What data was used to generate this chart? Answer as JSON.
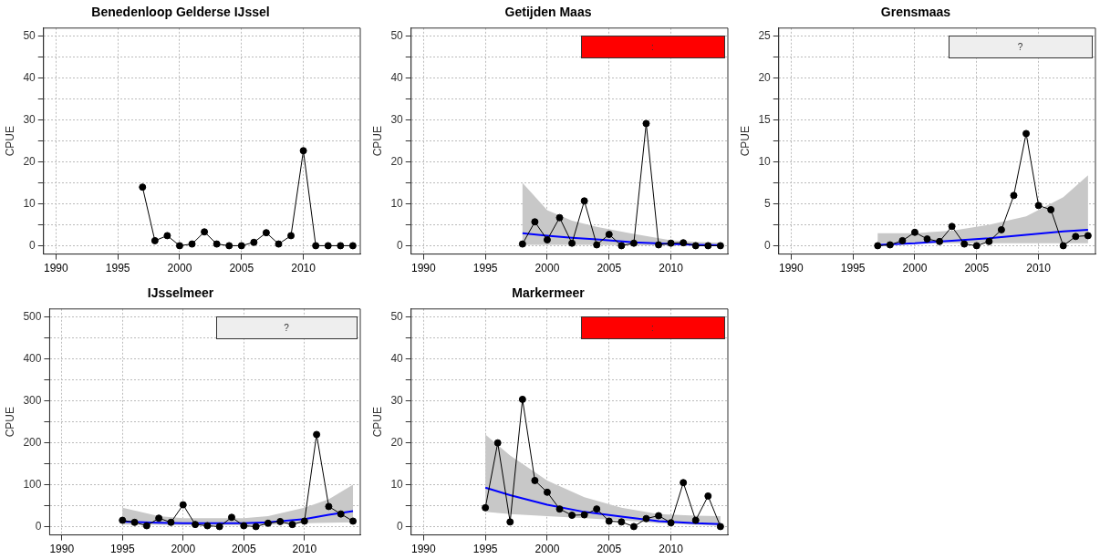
{
  "chart_data": [
    {
      "type": "line",
      "title": "Benedenloop Gelderse IJssel",
      "ylabel": "CPUE",
      "xlim": [
        1989,
        2014.6
      ],
      "ylim": [
        -2,
        52
      ],
      "xticks": [
        1990,
        1995,
        2000,
        2005,
        2010
      ],
      "yticks": [
        0,
        {
          "value": 5,
          "label": null
        },
        10,
        {
          "value": 15,
          "label": null
        },
        20,
        {
          "value": 25,
          "label": null
        },
        30,
        {
          "value": 35,
          "label": null
        },
        40,
        {
          "value": 45,
          "label": null
        },
        50
      ],
      "grid": true,
      "legend": false,
      "marker": "circle",
      "series": [
        {
          "color": "#000000",
          "x": [
            1997,
            1998,
            1999,
            2000,
            2001,
            2002,
            2003,
            2004,
            2005,
            2006,
            2007,
            2008,
            2009,
            2010,
            2011,
            2012,
            2013,
            2014
          ],
          "values": [
            14,
            1.2,
            2.4,
            0,
            0.4,
            3.3,
            0.4,
            0,
            0,
            0.8,
            3.1,
            0.4,
            2.4,
            22.7,
            0,
            0,
            0,
            0
          ]
        }
      ]
    },
    {
      "type": "line",
      "title": "Getijden Maas",
      "ylabel": "CPUE",
      "xlim": [
        1989,
        2014.6
      ],
      "ylim": [
        -2,
        52
      ],
      "xticks": [
        1990,
        1995,
        2000,
        2005,
        2010
      ],
      "yticks": [
        0,
        {
          "value": 5,
          "label": null
        },
        10,
        {
          "value": 15,
          "label": null
        },
        20,
        {
          "value": 25,
          "label": null
        },
        30,
        {
          "value": 35,
          "label": null
        },
        40,
        {
          "value": 45,
          "label": null
        },
        50
      ],
      "grid": true,
      "legend": false,
      "marker": "circle",
      "annotations": [
        ":"
      ],
      "series": [
        {
          "color": "#000000",
          "x": [
            1998,
            1999,
            2000,
            2001,
            2002,
            2003,
            2004,
            2005,
            2006,
            2007,
            2008,
            2009,
            2010,
            2011,
            2012,
            2013,
            2014
          ],
          "values": [
            0.4,
            5.7,
            1.4,
            6.7,
            0.6,
            10.7,
            0.2,
            2.7,
            0,
            0.6,
            29.2,
            0.2,
            0.6,
            0.7,
            0,
            0,
            0
          ]
        },
        {
          "color": "#0000ff",
          "marker": "none",
          "x": [
            1998,
            2000,
            2002,
            2004,
            2007,
            2010,
            2012,
            2014
          ],
          "values": [
            3,
            2.4,
            1.9,
            1.5,
            0.8,
            0.4,
            0.2,
            0.1
          ],
          "lower": [
            0.2,
            0.2,
            0.2,
            0.2,
            0.1,
            0.1,
            0.1,
            0
          ],
          "upper": [
            15,
            8.5,
            6,
            4.5,
            2.8,
            1.3,
            0.9,
            0.7
          ]
        }
      ]
    },
    {
      "type": "line",
      "title": "Grensmaas",
      "ylabel": "CPUE",
      "xlim": [
        1989,
        2014.6
      ],
      "ylim": [
        -1,
        26
      ],
      "xticks": [
        1990,
        1995,
        2000,
        2005,
        2010
      ],
      "yticks": [
        0,
        {
          "value": 2.5,
          "label": null
        },
        5,
        {
          "value": 7.5,
          "label": null
        },
        10,
        {
          "value": 12.5,
          "label": null
        },
        15,
        {
          "value": 17.5,
          "label": null
        },
        20,
        {
          "value": 22.5,
          "label": null
        },
        25
      ],
      "grid": true,
      "legend": false,
      "marker": "circle",
      "annotations": [
        "?"
      ],
      "series": [
        {
          "color": "#000000",
          "x": [
            1997,
            1998,
            1999,
            2000,
            2001,
            2002,
            2003,
            2004,
            2005,
            2006,
            2007,
            2008,
            2009,
            2010,
            2011,
            2012,
            2013,
            2014
          ],
          "values": [
            0,
            0.1,
            0.6,
            1.6,
            0.8,
            0.5,
            2.3,
            0.2,
            0,
            0.5,
            1.9,
            6,
            13.4,
            4.8,
            4.3,
            0,
            1.1,
            1.2
          ]
        },
        {
          "color": "#0000ff",
          "marker": "none",
          "x": [
            1997,
            2000,
            2003,
            2006,
            2009,
            2012,
            2014
          ],
          "values": [
            0.1,
            0.3,
            0.6,
            0.9,
            1.3,
            1.7,
            1.9
          ],
          "lower": [
            0.3,
            0.3,
            0.3,
            0.3,
            0.3,
            0.3,
            0.3
          ],
          "upper": [
            1.5,
            1.5,
            1.8,
            2.5,
            3.5,
            5.8,
            8.4
          ]
        }
      ]
    },
    {
      "type": "line",
      "title": "IJsselmeer",
      "ylabel": "CPUE",
      "xlim": [
        1989,
        2014.6
      ],
      "ylim": [
        -20,
        520
      ],
      "xticks": [
        1990,
        1995,
        2000,
        2005,
        2010
      ],
      "yticks": [
        0,
        {
          "value": 50,
          "label": null
        },
        100,
        {
          "value": 150,
          "label": null
        },
        200,
        {
          "value": 250,
          "label": null
        },
        300,
        {
          "value": 350,
          "label": null
        },
        400,
        {
          "value": 450,
          "label": null
        },
        500
      ],
      "grid": true,
      "legend": false,
      "marker": "circle",
      "annotations": [
        "?"
      ],
      "series": [
        {
          "color": "#000000",
          "x": [
            1995,
            1996,
            1997,
            1998,
            1999,
            2000,
            2001,
            2002,
            2003,
            2004,
            2005,
            2006,
            2007,
            2008,
            2009,
            2010,
            2011,
            2012,
            2013,
            2014
          ],
          "values": [
            15,
            10,
            2,
            20,
            10,
            52,
            5,
            2,
            0,
            22,
            2,
            0,
            8,
            12,
            5,
            13,
            220,
            48,
            30,
            13
          ]
        },
        {
          "color": "#0000ff",
          "marker": "none",
          "x": [
            1995,
            1998,
            2000,
            2005,
            2007,
            2010,
            2012,
            2014
          ],
          "values": [
            12,
            9,
            8,
            8,
            10,
            18,
            28,
            37
          ],
          "lower": [
            5,
            4,
            3,
            3,
            4,
            8,
            9,
            10
          ],
          "upper": [
            45,
            25,
            20,
            20,
            25,
            45,
            65,
            100
          ]
        }
      ]
    },
    {
      "type": "line",
      "title": "Markermeer",
      "ylabel": "CPUE",
      "xlim": [
        1989,
        2014.6
      ],
      "ylim": [
        -2,
        52
      ],
      "xticks": [
        1990,
        1995,
        2000,
        2005,
        2010
      ],
      "yticks": [
        0,
        {
          "value": 5,
          "label": null
        },
        10,
        {
          "value": 15,
          "label": null
        },
        20,
        {
          "value": 25,
          "label": null
        },
        30,
        {
          "value": 35,
          "label": null
        },
        40,
        {
          "value": 45,
          "label": null
        },
        50
      ],
      "grid": true,
      "legend": false,
      "marker": "circle",
      "annotations": [
        ":"
      ],
      "series": [
        {
          "color": "#000000",
          "x": [
            1995,
            1996,
            1997,
            1998,
            1999,
            2000,
            2001,
            2002,
            2003,
            2004,
            2005,
            2006,
            2007,
            2008,
            2009,
            2010,
            2011,
            2012,
            2013,
            2014
          ],
          "values": [
            4.5,
            20,
            1.1,
            30.4,
            11,
            8.2,
            4.2,
            2.7,
            2.8,
            4.2,
            1.3,
            1.1,
            0,
            1.9,
            2.6,
            0.9,
            10.5,
            1.5,
            7.3,
            0
          ]
        },
        {
          "color": "#0000ff",
          "marker": "none",
          "x": [
            1995,
            1997,
            2000,
            2003,
            2006,
            2009,
            2012,
            2014
          ],
          "values": [
            9.3,
            7.5,
            5.2,
            3.5,
            2.4,
            1.3,
            0.8,
            0.6
          ],
          "lower": [
            3.5,
            3,
            2.5,
            2,
            1.5,
            0.8,
            0.4,
            0.2
          ],
          "upper": [
            22,
            17,
            11,
            7,
            4.5,
            3,
            2.6,
            2.5
          ]
        }
      ]
    }
  ]
}
